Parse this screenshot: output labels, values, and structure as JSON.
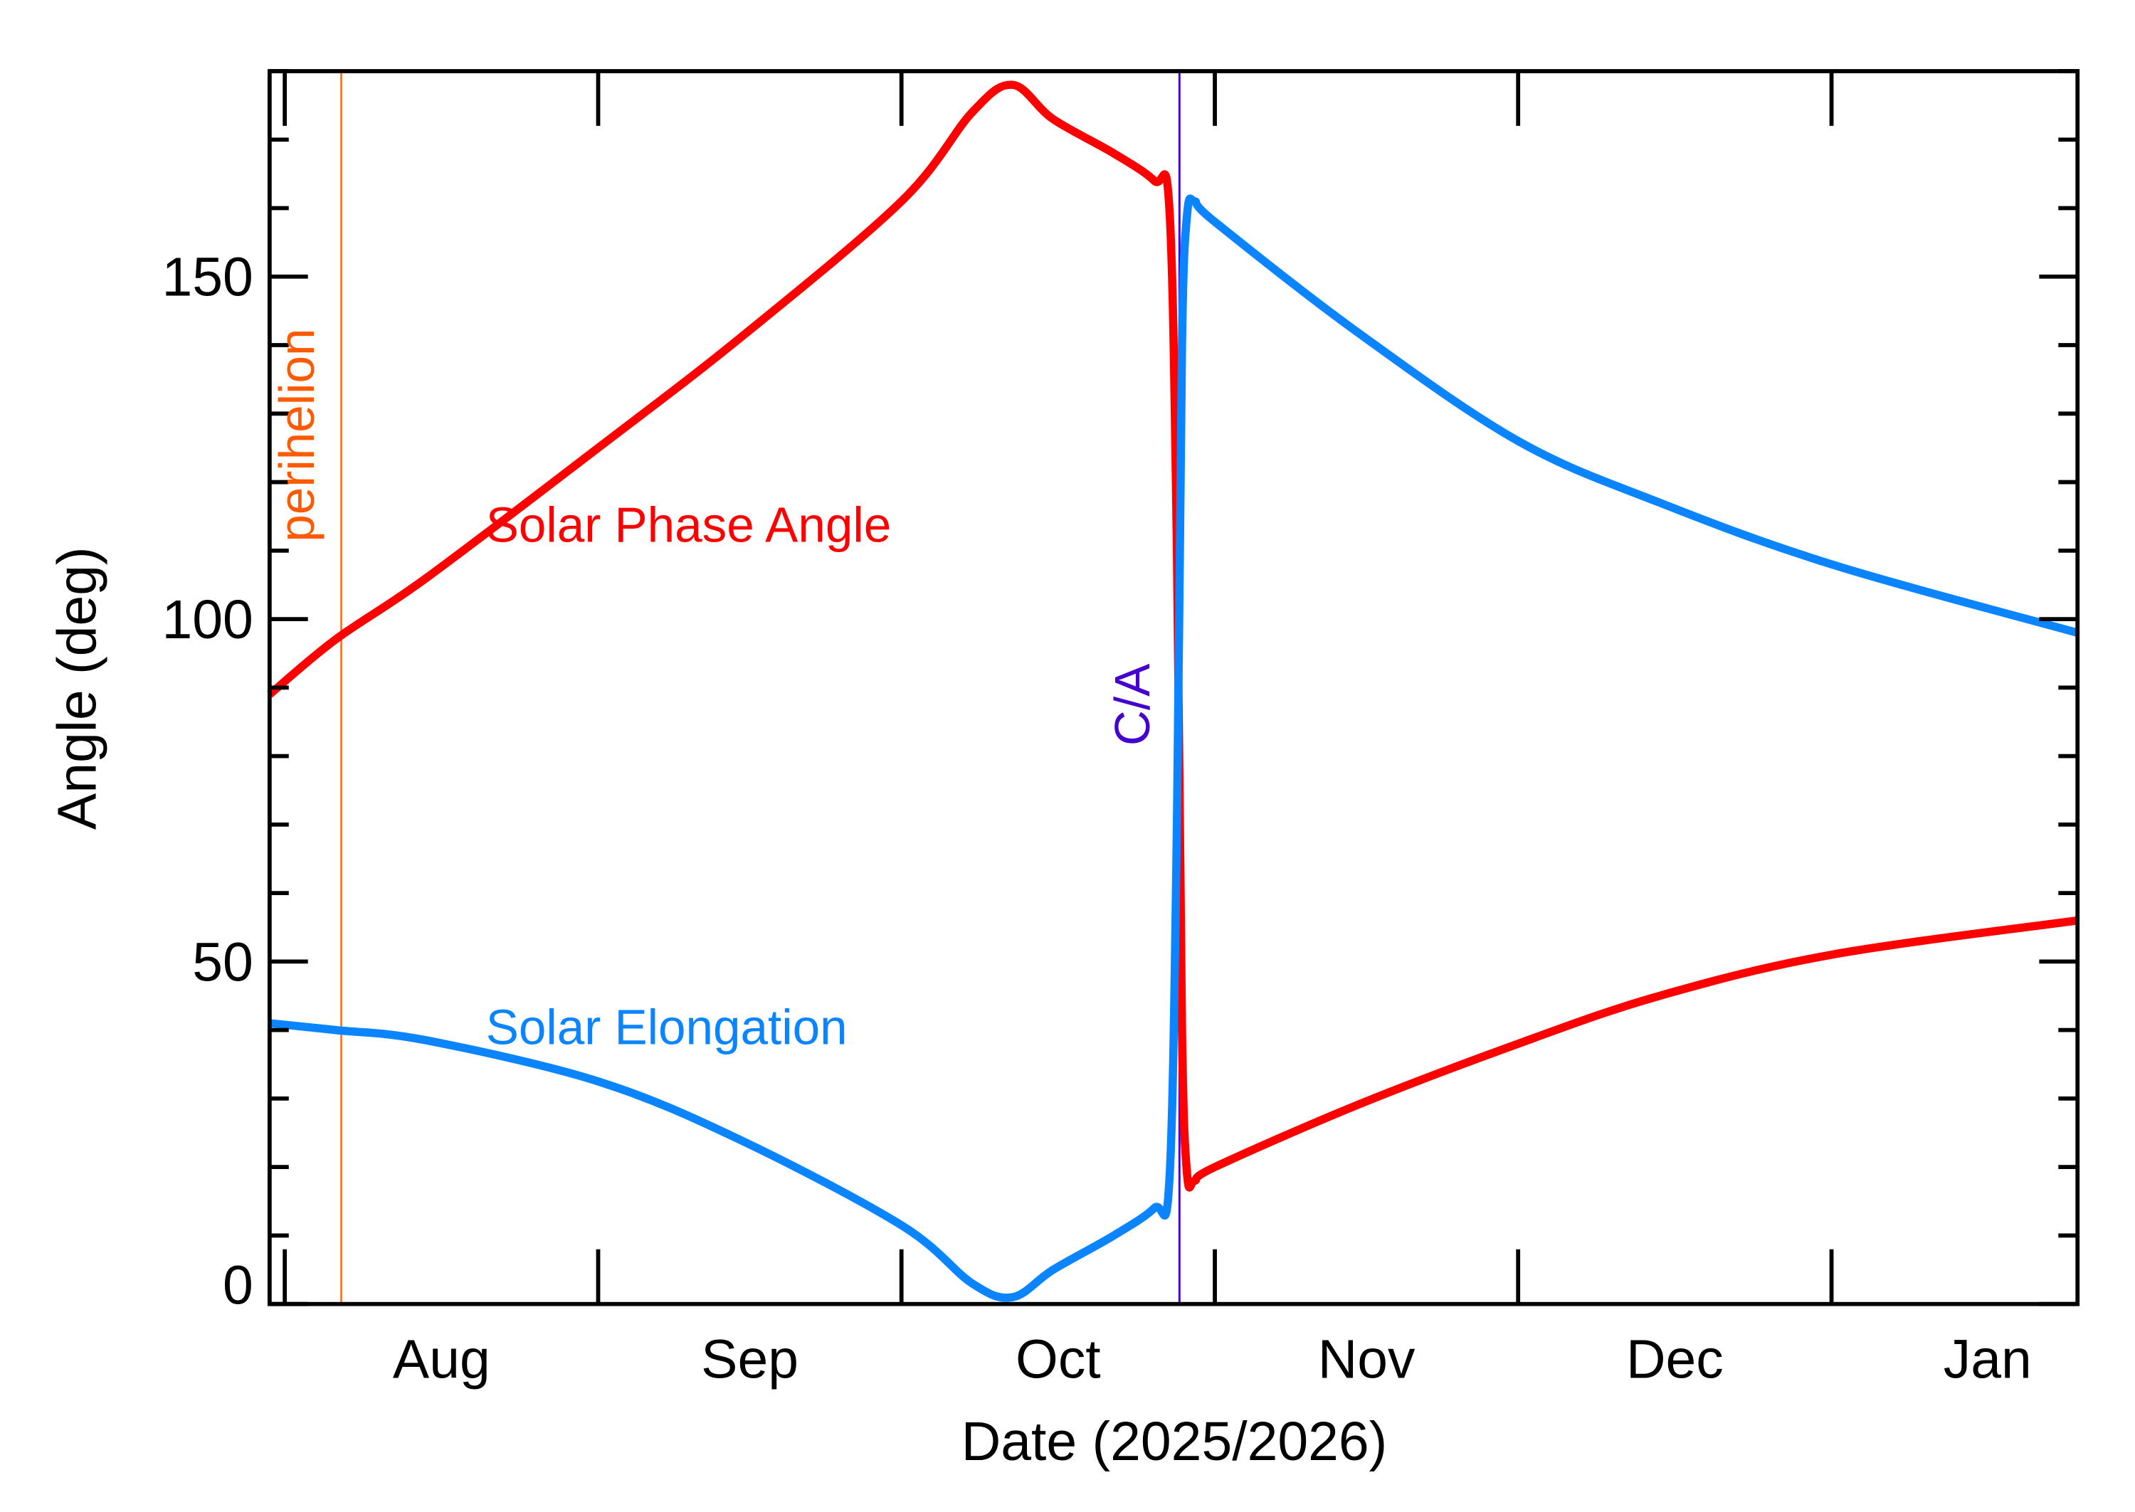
{
  "chart_data": {
    "type": "line",
    "xlabel": "Date (2025/2026)",
    "ylabel": "Angle (deg)",
    "xlim": [
      "2025-07-30T12:00",
      "2026-01-25T08:00"
    ],
    "ylim": [
      0,
      180
    ],
    "x_tick_dates": [
      "2025-08-01",
      "2025-09-01",
      "2025-10-01",
      "2025-11-01",
      "2025-12-01",
      "2026-01-01"
    ],
    "x_tick_labels": [
      "Aug",
      "Sep",
      "Oct",
      "Nov",
      "Dec",
      "Jan"
    ],
    "y_ticks": [
      0,
      50,
      100,
      150
    ],
    "y_tick_labels": [
      "0",
      "50",
      "100",
      "150"
    ],
    "y_minor_step": 10,
    "grid": false,
    "x": [
      "2025-07-30T12:00",
      "2025-08-06T00:00",
      "2025-08-15T00:00",
      "2025-09-01T00:00",
      "2025-09-15T00:00",
      "2025-10-01T00:00",
      "2025-10-08T00:00",
      "2025-10-12T00:00",
      "2025-10-16T00:00",
      "2025-10-22T00:00",
      "2025-10-26T00:00",
      "2025-10-27T12:00",
      "2025-10-28T06:00",
      "2025-10-28T18:00",
      "2025-10-29T06:00",
      "2025-10-30T00:00",
      "2025-11-01T00:00",
      "2025-11-15T00:00",
      "2025-12-01T00:00",
      "2025-12-15T00:00",
      "2026-01-01T00:00",
      "2026-01-25T08:00"
    ],
    "series": [
      {
        "name": "Solar Phase Angle",
        "color": "#ff0000",
        "values": [
          89,
          97,
          106,
          125,
          141,
          161,
          174,
          178,
          173,
          168,
          164,
          160,
          110,
          40,
          19,
          18,
          20,
          29,
          38,
          45,
          51,
          56
        ]
      },
      {
        "name": "Solar Elongation",
        "color": "#0a84ff",
        "values": [
          41,
          40,
          38.5,
          32.5,
          24,
          11.5,
          3,
          1,
          5,
          10,
          14,
          18,
          70,
          140,
          159,
          161,
          158,
          142,
          126,
          117,
          108,
          98
        ]
      }
    ],
    "annotations": [
      {
        "label": "perihelion",
        "date": "2025-08-06T14:00",
        "color": "#ff5a00"
      },
      {
        "label": "C/A",
        "date": "2025-10-28T12:00",
        "color": "#4400cc"
      }
    ]
  }
}
